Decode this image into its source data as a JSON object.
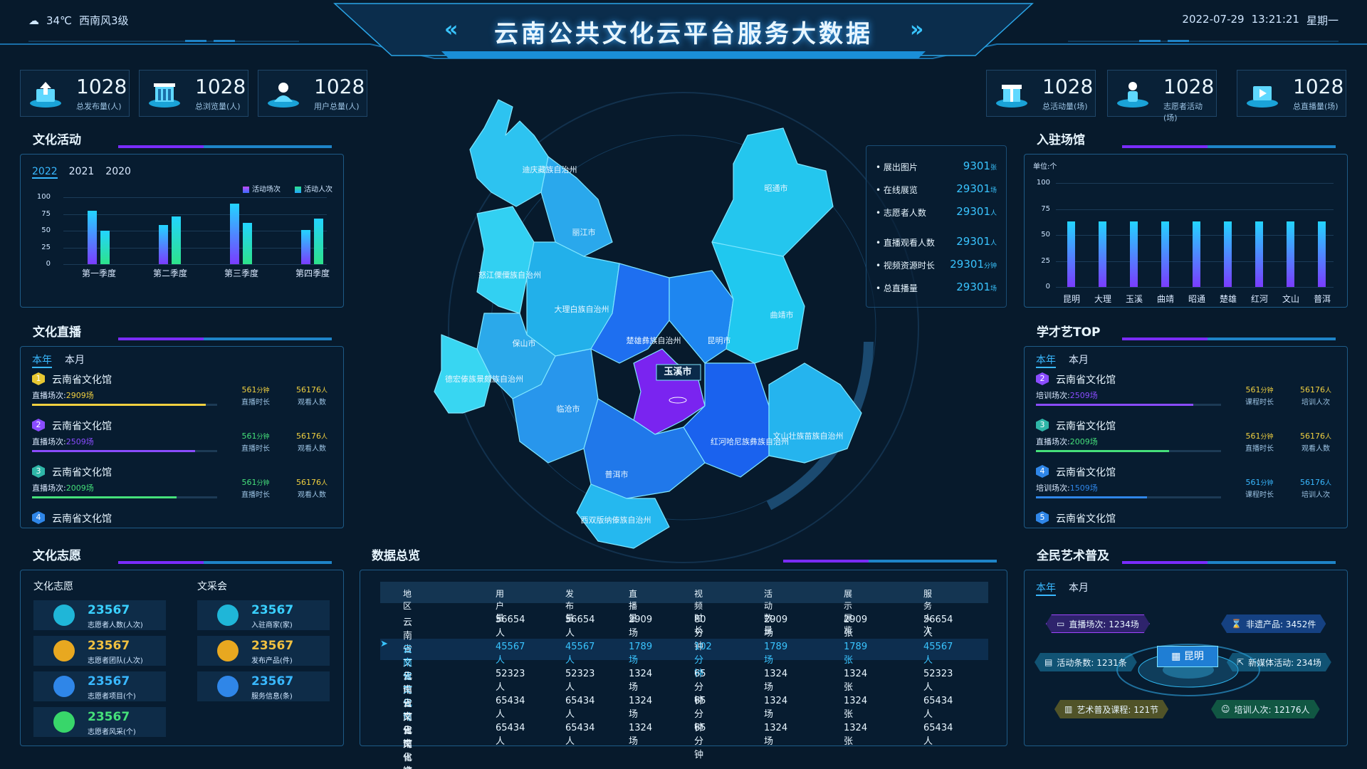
{
  "header": {
    "weather_temp": "34℃",
    "weather_wind": "西南风3级",
    "title": "云南公共文化云平台服务大数据",
    "date": "2022-07-29",
    "time": "13:21:21",
    "weekday": "星期一"
  },
  "stats_left": [
    {
      "num": "1028",
      "label": "总发布量(人)",
      "icon": "upload-icon"
    },
    {
      "num": "1028",
      "label": "总浏览量(人)",
      "icon": "building-icon"
    },
    {
      "num": "1028",
      "label": "用户总量(人)",
      "icon": "user-icon"
    }
  ],
  "stats_right": [
    {
      "num": "1028",
      "label": "总活动量(场)",
      "icon": "gift-icon"
    },
    {
      "num": "1028",
      "label": "志愿者活动(场)",
      "icon": "volunteer-icon"
    },
    {
      "num": "1028",
      "label": "总直播量(场)",
      "icon": "video-icon"
    }
  ],
  "culture_activity": {
    "title": "文化活动",
    "tabs": [
      "2022",
      "2021",
      "2020"
    ],
    "legend": [
      "活动场次",
      "活动人次"
    ],
    "colors": {
      "series1": "#7a3cff",
      "series2": "#2de38a",
      "cyan": "#23d4ff"
    }
  },
  "chart_data": [
    {
      "type": "bar",
      "title": "",
      "categories": [
        "第一季度",
        "第二季度",
        "第三季度",
        "第四季度"
      ],
      "series": [
        {
          "name": "活动场次",
          "values": [
            80,
            58,
            90,
            51
          ]
        },
        {
          "name": "活动人次",
          "values": [
            50,
            71,
            62,
            68
          ]
        }
      ],
      "ylim": [
        0,
        100
      ],
      "yticks": [
        0,
        25,
        50,
        75,
        100
      ],
      "legend": "top-right",
      "grid": true
    },
    {
      "type": "bar",
      "title": "",
      "ylabel": "单位:个",
      "categories": [
        "昆明",
        "大理",
        "玉溪",
        "曲靖",
        "昭通",
        "楚雄",
        "红河",
        "文山",
        "普洱"
      ],
      "values": [
        63,
        63,
        63,
        63,
        63,
        63,
        63,
        63,
        63
      ],
      "ylim": [
        0,
        100
      ],
      "yticks": [
        0,
        25,
        50,
        75,
        100
      ],
      "grid": true
    }
  ],
  "culture_live": {
    "title": "文化直播",
    "tabs": [
      "本年",
      "本月"
    ],
    "items": [
      {
        "rank": "1",
        "name": "云南省文化馆",
        "sub_label": "直播场次:",
        "sub_value": "2909场",
        "duration": "561",
        "duration_unit": "分钟",
        "duration_label": "直播时长",
        "views": "56176",
        "views_unit": "人",
        "views_label": "观看人数",
        "progress": 0.94
      },
      {
        "rank": "2",
        "name": "云南省文化馆",
        "sub_label": "直播场次:",
        "sub_value": "2509场",
        "duration": "561",
        "duration_unit": "分钟",
        "duration_label": "直播时长",
        "views": "56176",
        "views_unit": "人",
        "views_label": "观看人数",
        "progress": 0.88
      },
      {
        "rank": "3",
        "name": "云南省文化馆",
        "sub_label": "直播场次:",
        "sub_value": "2009场",
        "duration": "561",
        "duration_unit": "分钟",
        "duration_label": "直播时长",
        "views": "56176",
        "views_unit": "人",
        "views_label": "观看人数",
        "progress": 0.78
      },
      {
        "rank": "4",
        "name": "云南省文化馆"
      }
    ]
  },
  "volunteer": {
    "title": "文化志愿",
    "col1_title": "文化志愿",
    "col2_title": "文采会",
    "items": [
      {
        "num": "23567",
        "label": "志愿者人数(人次)",
        "icon": "person-icon"
      },
      {
        "num": "23567",
        "label": "志愿者团队(人次)",
        "icon": "team-icon"
      },
      {
        "num": "23567",
        "label": "志愿者项目(个)",
        "icon": "project-icon"
      },
      {
        "num": "23567",
        "label": "志愿者风采(个)",
        "icon": "star-icon"
      },
      {
        "num": "23567",
        "label": "入驻商家(家)",
        "icon": "shop-icon"
      },
      {
        "num": "23567",
        "label": "发布产品(件)",
        "icon": "box-icon"
      },
      {
        "num": "23567",
        "label": "服务信息(条)",
        "icon": "mail-icon"
      }
    ]
  },
  "map": {
    "regions": [
      "迪庆藏族自治州",
      "丽江市",
      "昭通市",
      "怒江傈僳族自治州",
      "大理白族自治州",
      "楚雄彝族自治州",
      "昆明市",
      "曲靖市",
      "保山市",
      "德宏傣族景颇族自治州",
      "临沧市",
      "玉溪市",
      "红河哈尼族彝族自治州",
      "文山壮族苗族自治州",
      "普洱市",
      "西双版纳傣族自治州"
    ],
    "selected": "玉溪市",
    "stats": [
      {
        "label": "展出图片",
        "value": "9301",
        "unit": "张"
      },
      {
        "label": "在线展览",
        "value": "29301",
        "unit": "场"
      },
      {
        "label": "志愿者人数",
        "value": "29301",
        "unit": "人"
      },
      {
        "label": "直播观看人数",
        "value": "29301",
        "unit": "人"
      },
      {
        "label": "视频资源时长",
        "value": "29301",
        "unit": "分钟"
      },
      {
        "label": "总直播量",
        "value": "29301",
        "unit": "场"
      }
    ]
  },
  "data_overview": {
    "title": "数据总览",
    "headers": [
      "地区",
      "用户量",
      "发布量",
      "直播量",
      "视频时长",
      "活动数量",
      "展示展览",
      "服务人次"
    ],
    "rows": [
      [
        "云南省文化馆",
        "56654人",
        "56654人",
        "2909场",
        "80分钟",
        "2909场",
        "2909张",
        "56654人"
      ],
      [
        "云南省文化馆",
        "45567人",
        "45567人",
        "1789场",
        "102分钟",
        "1789场",
        "1789张",
        "45567人"
      ],
      [
        "云南省文化馆",
        "52323人",
        "52323人",
        "1324场",
        "65分钟",
        "1324场",
        "1324张",
        "52323人"
      ],
      [
        "云南省文化馆",
        "65434人",
        "65434人",
        "1324场",
        "65分钟",
        "1324场",
        "1324张",
        "65434人"
      ],
      [
        "云南省文化馆",
        "65434人",
        "65434人",
        "1324场",
        "65分钟",
        "1324场",
        "1324张",
        "65434人"
      ]
    ],
    "highlight_row": 1
  },
  "venues": {
    "title": "入驻场馆"
  },
  "top_art": {
    "title": "学才艺TOP",
    "tabs": [
      "本年",
      "本月"
    ],
    "items": [
      {
        "rank": "2",
        "name": "云南省文化馆",
        "sub_label": "培训场次:",
        "sub_value": "2509场",
        "duration": "561",
        "duration_unit": "分钟",
        "duration_label": "课程时长",
        "views": "56176",
        "views_unit": "人",
        "views_label": "培训人次",
        "progress": 0.85
      },
      {
        "rank": "3",
        "name": "云南省文化馆",
        "sub_label": "直播场次:",
        "sub_value": "2009场",
        "duration": "561",
        "duration_unit": "分钟",
        "duration_label": "直播时长",
        "views": "56176",
        "views_unit": "人",
        "views_label": "观看人数",
        "progress": 0.72
      },
      {
        "rank": "4",
        "name": "云南省文化馆",
        "sub_label": "培训场次:",
        "sub_value": "1509场",
        "duration": "561",
        "duration_unit": "分钟",
        "duration_label": "课程时长",
        "views": "56176",
        "views_unit": "人",
        "views_label": "培训人次",
        "progress": 0.6
      },
      {
        "rank": "5",
        "name": "云南省文化馆"
      }
    ]
  },
  "art_popular": {
    "title": "全民艺术普及",
    "tabs": [
      "本年",
      "本月"
    ],
    "center": "昆明",
    "tags": [
      {
        "text": "直播场次: 1234场",
        "color": "#a044ff"
      },
      {
        "text": "非遗产品: 3452件",
        "color": "#2f8cff"
      },
      {
        "text": "活动条数: 1231条",
        "color": "#2fd2ff"
      },
      {
        "text": "新媒体活动: 234场",
        "color": "#2fd2ff"
      },
      {
        "text": "艺术普及课程: 121节",
        "color": "#e8c832"
      },
      {
        "text": "培训人次: 12176人",
        "color": "#2fe07a"
      }
    ]
  }
}
